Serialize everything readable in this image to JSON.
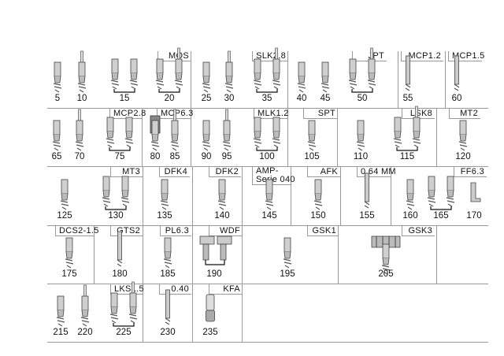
{
  "rows": [
    {
      "cells": [
        {
          "label": "MQS",
          "items": [
            {
              "number": "5"
            },
            {
              "number": "10"
            },
            {
              "number": "15"
            },
            {
              "number": "20"
            }
          ]
        },
        {
          "label": "SLK2.8",
          "items": [
            {
              "number": "25"
            },
            {
              "number": "30"
            },
            {
              "number": "35"
            }
          ]
        },
        {
          "label": "JPT",
          "items": [
            {
              "number": "40"
            },
            {
              "number": "45"
            },
            {
              "number": "50"
            }
          ]
        },
        {
          "label": "MCP1.2",
          "items": [
            {
              "number": "55"
            }
          ]
        },
        {
          "label": "MCP1.5",
          "items": [
            {
              "number": "60"
            }
          ]
        }
      ]
    },
    {
      "cells": [
        {
          "label": "MCP2.8",
          "items": [
            {
              "number": "65"
            },
            {
              "number": "70"
            },
            {
              "number": "75"
            }
          ]
        },
        {
          "label": "MCP6.3",
          "items": [
            {
              "number": "80"
            },
            {
              "number": "85"
            }
          ]
        },
        {
          "label": "MLK1.2",
          "items": [
            {
              "number": "90"
            },
            {
              "number": "95"
            },
            {
              "number": "100"
            }
          ]
        },
        {
          "label": "SPT",
          "items": [
            {
              "number": "105"
            }
          ]
        },
        {
          "label": "LSK8",
          "items": [
            {
              "number": "110"
            },
            {
              "number": "115"
            }
          ]
        },
        {
          "label": "MT2",
          "items": [
            {
              "number": "120"
            }
          ]
        }
      ]
    },
    {
      "cells": [
        {
          "label": "MT3",
          "items": [
            {
              "number": "125"
            },
            {
              "number": "130"
            }
          ]
        },
        {
          "label": "DFK4",
          "items": [
            {
              "number": "135"
            }
          ]
        },
        {
          "label": "DFK2",
          "items": [
            {
              "number": "140"
            }
          ]
        },
        {
          "label": "AMP-\nSerie 040",
          "items": [
            {
              "number": "145"
            }
          ]
        },
        {
          "label": "AFK",
          "items": [
            {
              "number": "150"
            }
          ]
        },
        {
          "label": "0.64 MM",
          "items": [
            {
              "number": "155"
            }
          ]
        },
        {
          "label": "FF6.3",
          "items": [
            {
              "number": "160"
            },
            {
              "number": "165"
            },
            {
              "number": "170"
            }
          ]
        }
      ]
    },
    {
      "cells": [
        {
          "label": "DCS2-1.5",
          "items": [
            {
              "number": "175"
            }
          ]
        },
        {
          "label": "GTS2",
          "items": [
            {
              "number": "180"
            }
          ]
        },
        {
          "label": "PL6.3",
          "items": [
            {
              "number": "185"
            }
          ]
        },
        {
          "label": "WDF",
          "items": [
            {
              "number": "190"
            }
          ]
        },
        {
          "label": "GSK1",
          "items": [
            {
              "number": "195"
            }
          ]
        },
        {
          "label": "GSK3",
          "items": [
            {
              "number": "205"
            }
          ]
        },
        {
          "label": "",
          "items": []
        }
      ]
    },
    {
      "cells": [
        {
          "label": "LKS1.5",
          "items": [
            {
              "number": "215"
            },
            {
              "number": "220"
            },
            {
              "number": "225"
            }
          ]
        },
        {
          "label": "0.40",
          "items": [
            {
              "number": "230"
            }
          ]
        },
        {
          "label": "KFA",
          "items": [
            {
              "number": "235"
            }
          ]
        },
        {
          "label": "",
          "items": []
        }
      ]
    }
  ]
}
